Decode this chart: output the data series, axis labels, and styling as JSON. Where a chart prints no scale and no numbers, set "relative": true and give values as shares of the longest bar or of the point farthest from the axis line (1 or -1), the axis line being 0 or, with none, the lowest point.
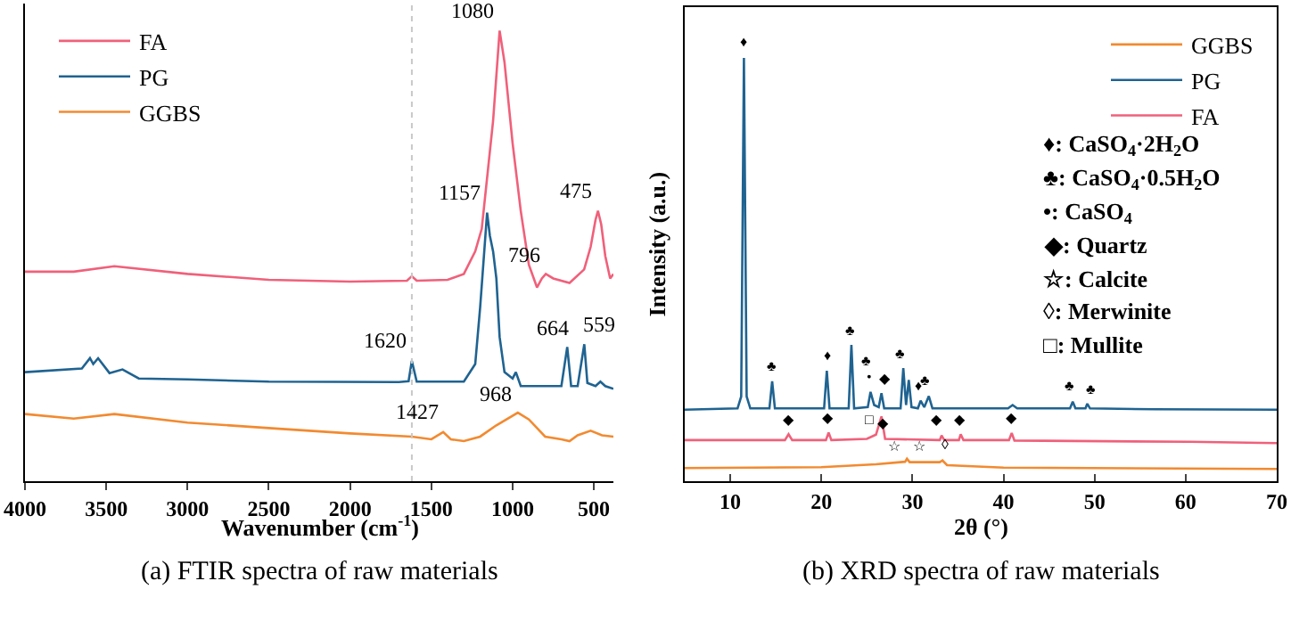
{
  "chart_data": [
    {
      "type": "line",
      "title": "(a) FTIR spectra of raw materials",
      "xlabel": "Wavenumber (cm$^{-1}$)",
      "relative": true,
      "grid": false,
      "legend": "top left",
      "xlim": [
        4000,
        380
      ],
      "xticks": [
        4000,
        3500,
        3000,
        2500,
        2000,
        1500,
        1000,
        500
      ],
      "series": [
        {
          "name": "FA",
          "color": "#f0607a",
          "x": [
            4000,
            3700,
            3450,
            3000,
            2500,
            2000,
            1650,
            1620,
            1590,
            1400,
            1300,
            1230,
            1190,
            1120,
            1080,
            1050,
            1000,
            950,
            900,
            850,
            820,
            796,
            750,
            650,
            560,
            520,
            490,
            475,
            455,
            430,
            400,
            380
          ],
          "values": [
            0.465,
            0.465,
            0.477,
            0.46,
            0.447,
            0.443,
            0.445,
            0.455,
            0.445,
            0.447,
            0.46,
            0.51,
            0.56,
            0.8,
            1.0,
            0.93,
            0.75,
            0.6,
            0.48,
            0.43,
            0.45,
            0.46,
            0.45,
            0.44,
            0.47,
            0.52,
            0.58,
            0.6,
            0.57,
            0.5,
            0.45,
            0.46
          ]
        },
        {
          "name": "PG",
          "color": "#1f6391",
          "x": [
            4000,
            3650,
            3600,
            3580,
            3550,
            3480,
            3400,
            3300,
            3000,
            2500,
            1700,
            1640,
            1620,
            1590,
            1300,
            1230,
            1200,
            1157,
            1140,
            1120,
            1100,
            1080,
            1050,
            1000,
            980,
            950,
            700,
            664,
            640,
            600,
            559,
            540,
            490,
            460,
            430,
            380
          ],
          "values": [
            0.242,
            0.25,
            0.273,
            0.26,
            0.273,
            0.24,
            0.248,
            0.228,
            0.226,
            0.221,
            0.22,
            0.222,
            0.267,
            0.221,
            0.221,
            0.26,
            0.385,
            0.596,
            0.545,
            0.51,
            0.45,
            0.32,
            0.242,
            0.228,
            0.242,
            0.211,
            0.211,
            0.298,
            0.211,
            0.211,
            0.304,
            0.218,
            0.211,
            0.221,
            0.211,
            0.205
          ]
        },
        {
          "name": "GGBS",
          "color": "#f28a30",
          "x": [
            4000,
            3700,
            3450,
            3000,
            2500,
            2000,
            1620,
            1500,
            1427,
            1380,
            1300,
            1200,
            1100,
            968,
            900,
            800,
            700,
            650,
            600,
            520,
            450,
            380
          ],
          "values": [
            0.149,
            0.139,
            0.149,
            0.13,
            0.118,
            0.106,
            0.099,
            0.093,
            0.109,
            0.093,
            0.089,
            0.099,
            0.124,
            0.152,
            0.137,
            0.099,
            0.093,
            0.089,
            0.102,
            0.112,
            0.102,
            0.099
          ]
        }
      ],
      "ref_lines": [
        {
          "axis": "x",
          "value": 1620,
          "color": "#c8c8c8",
          "line_style": "dotted"
        }
      ],
      "annotations": [
        {
          "text": "1080",
          "x": 1080,
          "y": 1.0
        },
        {
          "text": "1157",
          "x": 1157,
          "y": 0.596
        },
        {
          "text": "796",
          "x": 796,
          "y": 0.46
        },
        {
          "text": "475",
          "x": 475,
          "y": 0.6
        },
        {
          "text": "1620",
          "x": 1620,
          "y": 0.267
        },
        {
          "text": "664",
          "x": 664,
          "y": 0.298
        },
        {
          "text": "559",
          "x": 559,
          "y": 0.304
        },
        {
          "text": "968",
          "x": 968,
          "y": 0.152
        },
        {
          "text": "1427",
          "x": 1427,
          "y": 0.109
        }
      ]
    },
    {
      "type": "line",
      "title": "(b) XRD spectra of raw materials",
      "xlabel": "2θ (°)",
      "ylabel": "Intensity (a.u.)",
      "relative": true,
      "grid": false,
      "legend": "top right",
      "xlim": [
        5,
        70
      ],
      "xticks": [
        10,
        20,
        30,
        40,
        50,
        60,
        70
      ],
      "series": [
        {
          "name": "GGBS",
          "color": "#f28a30",
          "x": [
            5,
            20,
            26,
            29.2,
            29.4,
            29.7,
            33,
            33.3,
            33.8,
            40,
            70
          ],
          "values": [
            0.031,
            0.033,
            0.04,
            0.046,
            0.053,
            0.045,
            0.045,
            0.049,
            0.038,
            0.032,
            0.029
          ]
        },
        {
          "name": "PG",
          "color": "#1f6391",
          "x": [
            5,
            10.8,
            11.2,
            11.5,
            11.8,
            12.2,
            14.3,
            14.6,
            14.9,
            20.3,
            20.6,
            20.9,
            23.0,
            23.3,
            23.6,
            25.1,
            25.4,
            25.8,
            26.3,
            26.6,
            26.9,
            28.7,
            29.0,
            29.3,
            29.6,
            29.9,
            30.6,
            30.9,
            31.3,
            31.8,
            32.2,
            40.5,
            41,
            41.5,
            47.3,
            47.6,
            47.9,
            49.0,
            49.2,
            49.5,
            56.5,
            70
          ],
          "values": [
            0.169,
            0.172,
            0.2,
            1.0,
            0.2,
            0.172,
            0.172,
            0.236,
            0.172,
            0.172,
            0.261,
            0.172,
            0.172,
            0.322,
            0.172,
            0.175,
            0.211,
            0.18,
            0.175,
            0.208,
            0.172,
            0.172,
            0.267,
            0.18,
            0.239,
            0.175,
            0.172,
            0.19,
            0.175,
            0.201,
            0.172,
            0.172,
            0.18,
            0.172,
            0.172,
            0.188,
            0.172,
            0.172,
            0.183,
            0.172,
            0.17,
            0.169
          ]
        },
        {
          "name": "FA",
          "color": "#f0607a",
          "x": [
            5,
            16.0,
            16.4,
            16.8,
            20.5,
            20.8,
            21.1,
            25,
            26,
            26.6,
            27,
            33,
            33.2,
            33.5,
            35.1,
            35.3,
            35.6,
            40.6,
            40.9,
            41.2,
            60.5,
            70
          ],
          "values": [
            0.097,
            0.097,
            0.111,
            0.097,
            0.097,
            0.115,
            0.097,
            0.1,
            0.11,
            0.153,
            0.1,
            0.097,
            0.108,
            0.097,
            0.097,
            0.111,
            0.097,
            0.097,
            0.114,
            0.096,
            0.093,
            0.09
          ]
        }
      ],
      "annotations": [
        "♦: CaSO$_{4}$·2H$_{2}$O",
        "♣: CaSO$_{4}$·0.5H$_{2}$O",
        "•: CaSO$_{4}$",
        "◆: Quartz",
        "☆: Calcite",
        "◊: Merwinite",
        "□: Mullite",
        {
          "text": "♦",
          "x": 11.5,
          "y": 1.0
        },
        {
          "text": "♣",
          "x": 14.6,
          "y": 0.236
        },
        {
          "text": "♦",
          "x": 20.6,
          "y": 0.261
        },
        {
          "text": "♣",
          "x": 23.3,
          "y": 0.322
        },
        {
          "text": "•",
          "x": 25.4,
          "y": 0.211
        },
        {
          "text": "♣",
          "x": 25.4,
          "y": 0.211
        },
        {
          "text": "◆",
          "x": 26.6,
          "y": 0.208
        },
        {
          "text": "♣",
          "x": 29.0,
          "y": 0.267
        },
        {
          "text": "♦",
          "x": 30.9,
          "y": 0.19
        },
        {
          "text": "♣",
          "x": 31.8,
          "y": 0.201
        },
        {
          "text": "♣",
          "x": 47.6,
          "y": 0.188
        },
        {
          "text": "♣",
          "x": 49.2,
          "y": 0.183
        },
        {
          "text": "◆",
          "x": 16.4,
          "y": 0.111
        },
        {
          "text": "◆",
          "x": 20.8,
          "y": 0.115
        },
        {
          "text": "□",
          "x": 25.6,
          "y": 0.11
        },
        {
          "text": "◆",
          "x": 27.3,
          "y": 0.1
        },
        {
          "text": "◆",
          "x": 33.2,
          "y": 0.108
        },
        {
          "text": "◆",
          "x": 35.3,
          "y": 0.111
        },
        {
          "text": "◆",
          "x": 40.9,
          "y": 0.114
        },
        {
          "text": "☆",
          "x": 28.5,
          "y": 0.046
        },
        {
          "text": "☆",
          "x": 30.3,
          "y": 0.045
        },
        {
          "text": "◊",
          "x": 33.3,
          "y": 0.049
        }
      ]
    }
  ]
}
